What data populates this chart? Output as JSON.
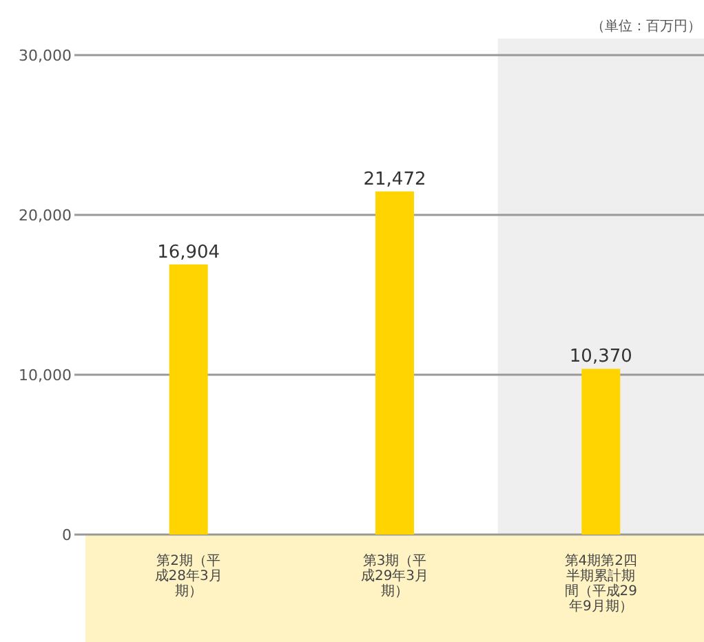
{
  "chart_data": {
    "type": "bar",
    "annotations": [
      "（単位：百万円）"
    ],
    "categories": [
      "第2期（平成28年3月期）",
      "第3期（平成29年3月期）",
      "第4期第2四半期累計期間（平成29年9月期）"
    ],
    "values": [
      16904,
      21472,
      10370
    ],
    "value_labels": [
      "16,904",
      "21,472",
      "10,370"
    ],
    "color": "#ffd400",
    "ylim": [
      0,
      30000
    ],
    "yticks": [
      {
        "value": 0,
        "label": "0"
      },
      {
        "value": 10000,
        "label": "10,000"
      },
      {
        "value": 20000,
        "label": "20,000"
      },
      {
        "value": 30000,
        "label": "30,000"
      }
    ],
    "grid": "y",
    "bands": [
      {
        "axis": "x",
        "from": "第4期第2四半期累計期間（平成29年9月期）",
        "to": "第4期第2四半期累計期間（平成29年9月期）",
        "color": "#efefef"
      }
    ]
  }
}
